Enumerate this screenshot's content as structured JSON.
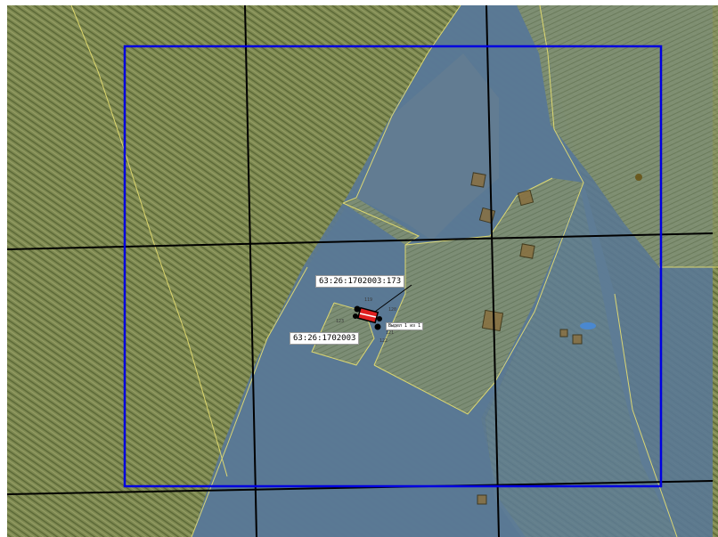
{
  "map": {
    "labels": {
      "parcel": "63:26:1702003:173",
      "quarter": "63:26:1702003",
      "excerpt": "Выдел 1 из 1"
    },
    "point_numbers": [
      "119",
      "120",
      "121",
      "122",
      "123"
    ],
    "colors": {
      "field": "#7f8a52",
      "hatch": "#5a6735",
      "blue_zone": "#5a7895",
      "pale_zone": "#8a9668",
      "parcel_outline": "#e8e070",
      "grid_line": "#000000",
      "frame": "#0000e0",
      "marker": "#e02020"
    },
    "icons": [
      "location-marker-icon"
    ]
  }
}
